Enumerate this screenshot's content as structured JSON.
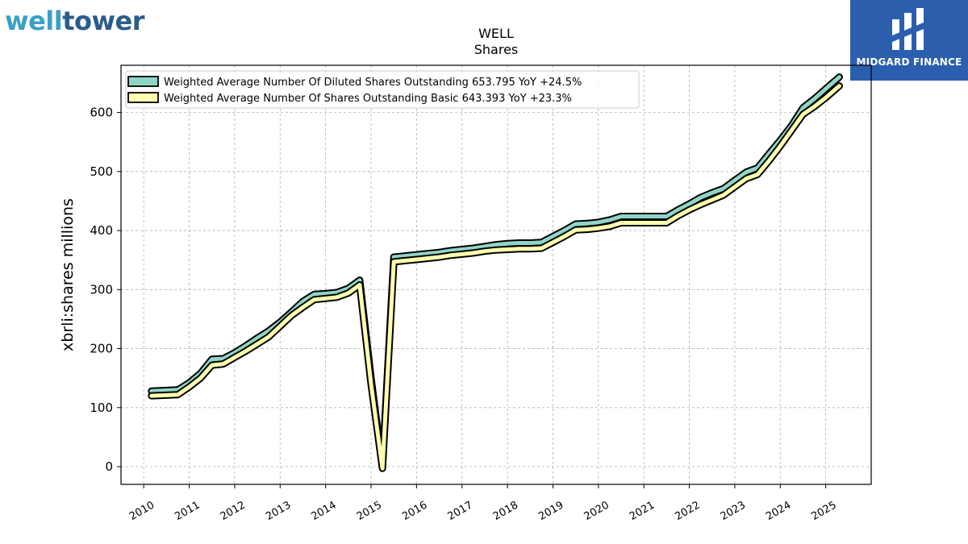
{
  "logos": {
    "left_part1": "well",
    "left_part2": "tower",
    "right_brand": "MIDGARD FINANCE"
  },
  "chart_data": {
    "type": "line",
    "title": "WELL",
    "subtitle": "Shares",
    "ylabel": "xbrli:shares millions",
    "xlabel": "",
    "ylim": [
      -30,
      680
    ],
    "xlim": [
      2009.5,
      2026.0
    ],
    "yticks": [
      0,
      100,
      200,
      300,
      400,
      500,
      600
    ],
    "xticks": [
      "2010",
      "2011",
      "2012",
      "2013",
      "2014",
      "2015",
      "2016",
      "2017",
      "2018",
      "2019",
      "2020",
      "2021",
      "2022",
      "2023",
      "2024",
      "2025"
    ],
    "grid": true,
    "legend_position": "top-left",
    "series": [
      {
        "name": "Weighted Average Number Of Diluted Shares Outstanding",
        "legend_label": "Weighted Average Number Of Diluted Shares Outstanding  653.795 YoY +24.5%",
        "color": "#8fd6c8",
        "x": [
          2010.17,
          2010.75,
          2011.0,
          2011.25,
          2011.5,
          2011.75,
          2012.0,
          2012.25,
          2012.5,
          2012.75,
          2013.0,
          2013.25,
          2013.5,
          2013.75,
          2014.0,
          2014.25,
          2014.5,
          2014.75,
          2015.0,
          2015.25,
          2015.5,
          2015.75,
          2016.0,
          2016.25,
          2016.5,
          2016.75,
          2017.0,
          2017.25,
          2017.5,
          2017.75,
          2018.0,
          2018.25,
          2018.5,
          2018.75,
          2019.0,
          2019.25,
          2019.5,
          2019.75,
          2020.0,
          2020.25,
          2020.5,
          2020.75,
          2021.0,
          2021.25,
          2021.5,
          2021.75,
          2022.0,
          2022.25,
          2022.5,
          2022.75,
          2023.0,
          2023.25,
          2023.5,
          2023.75,
          2024.0,
          2024.25,
          2024.5,
          2024.75,
          2025.0,
          2025.3
        ],
        "values": [
          128,
          130,
          142,
          158,
          182,
          183,
          193,
          205,
          218,
          230,
          245,
          262,
          280,
          292,
          293,
          295,
          302,
          316,
          150,
          0,
          355,
          357,
          359,
          361,
          363,
          366,
          368,
          370,
          373,
          376,
          378,
          379,
          379,
          380,
          390,
          400,
          411,
          412,
          414,
          418,
          424,
          424,
          424,
          424,
          424,
          435,
          445,
          456,
          464,
          471,
          485,
          499,
          506,
          530,
          553,
          578,
          608,
          623,
          640,
          660
        ]
      },
      {
        "name": "Weighted Average Number Of Shares Outstanding Basic",
        "legend_label": "Weighted Average Number Of Shares Outstanding Basic  643.393 YoY +23.3%",
        "color": "#ffffb0",
        "x": [
          2010.17,
          2010.75,
          2011.0,
          2011.25,
          2011.5,
          2011.75,
          2012.0,
          2012.25,
          2012.5,
          2012.75,
          2013.0,
          2013.25,
          2013.5,
          2013.75,
          2014.0,
          2014.25,
          2014.5,
          2014.75,
          2015.0,
          2015.25,
          2015.5,
          2015.75,
          2016.0,
          2016.25,
          2016.5,
          2016.75,
          2017.0,
          2017.25,
          2017.5,
          2017.75,
          2018.0,
          2018.25,
          2018.5,
          2018.75,
          2019.0,
          2019.25,
          2019.5,
          2019.75,
          2020.0,
          2020.25,
          2020.5,
          2020.75,
          2021.0,
          2021.25,
          2021.5,
          2021.75,
          2022.0,
          2022.25,
          2022.5,
          2022.75,
          2023.0,
          2023.25,
          2023.5,
          2023.75,
          2024.0,
          2024.25,
          2024.5,
          2024.75,
          2025.0,
          2025.3
        ],
        "values": [
          120,
          122,
          135,
          150,
          172,
          174,
          185,
          196,
          208,
          220,
          238,
          256,
          270,
          283,
          285,
          287,
          294,
          308,
          140,
          -3,
          347,
          349,
          351,
          353,
          355,
          358,
          360,
          362,
          365,
          367,
          368,
          369,
          369,
          370,
          380,
          390,
          401,
          402,
          404,
          407,
          413,
          413,
          413,
          413,
          413,
          425,
          435,
          444,
          452,
          460,
          474,
          488,
          495,
          518,
          543,
          570,
          597,
          610,
          625,
          645
        ]
      }
    ]
  }
}
